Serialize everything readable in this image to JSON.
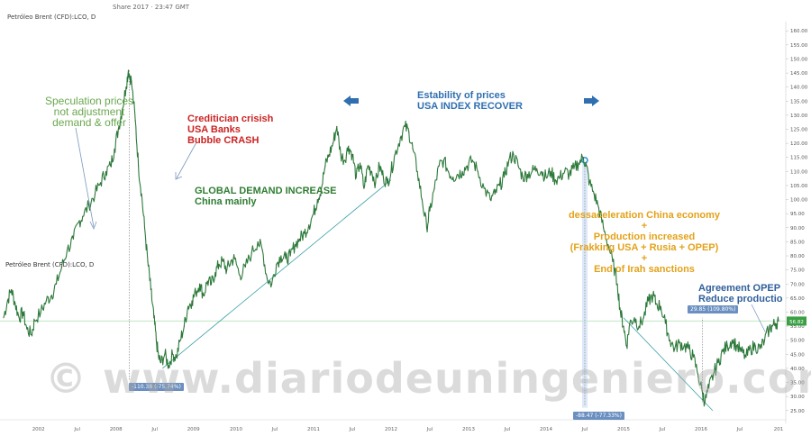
{
  "header": {
    "top_line": "Share 2017 · 23:47 GMT",
    "symbol": "Petróleo Brent (CFD):LCO, D",
    "side_label": "Petróleo Brent (CFD):LCO, D"
  },
  "watermark": "© www.diariodeuningeniero.com",
  "chart_data": {
    "type": "line",
    "title": "Petróleo Brent (CFD):LCO, D",
    "xlabel": "",
    "ylabel": "",
    "x_ticks": [
      "2002",
      "Jul",
      "2008",
      "Jul",
      "2009",
      "2010",
      "Jul",
      "2011",
      "Jul",
      "2012",
      "Jul",
      "2013",
      "Jul",
      "2014",
      "Jul",
      "2015",
      "Jul",
      "2016",
      "Jul",
      "201"
    ],
    "y_ticks": [
      "160.00",
      "155.00",
      "150.00",
      "145.00",
      "140.00",
      "135.00",
      "130.00",
      "125.00",
      "120.00",
      "115.00",
      "110.00",
      "105.00",
      "100.00",
      "95.00",
      "90.00",
      "85.00",
      "80.00",
      "75.00",
      "70.00",
      "65.00",
      "60.00",
      "55.00",
      "50.00",
      "45.00",
      "40.00",
      "35.00",
      "30.00",
      "25.00"
    ],
    "ylim": [
      23,
      162
    ],
    "last_price": "56.82",
    "grid": false,
    "series": [
      {
        "values": [
          [
            2007.0,
            58
          ],
          [
            2007.05,
            64
          ],
          [
            2007.1,
            68
          ],
          [
            2007.15,
            63
          ],
          [
            2007.2,
            58
          ],
          [
            2007.25,
            60
          ],
          [
            2007.3,
            54
          ],
          [
            2007.36,
            52
          ],
          [
            2007.4,
            57
          ],
          [
            2007.48,
            60
          ],
          [
            2007.55,
            64
          ],
          [
            2007.62,
            66
          ],
          [
            2007.68,
            70
          ],
          [
            2007.75,
            76
          ],
          [
            2007.82,
            82
          ],
          [
            2007.9,
            86
          ],
          [
            2007.97,
            92
          ],
          [
            2008.02,
            94
          ],
          [
            2008.1,
            98
          ],
          [
            2008.18,
            102
          ],
          [
            2008.25,
            106
          ],
          [
            2008.32,
            110
          ],
          [
            2008.38,
            112
          ],
          [
            2008.43,
            118
          ],
          [
            2008.48,
            125
          ],
          [
            2008.53,
            132
          ],
          [
            2008.58,
            140
          ],
          [
            2008.61,
            146
          ],
          [
            2008.65,
            142
          ],
          [
            2008.7,
            128
          ],
          [
            2008.74,
            112
          ],
          [
            2008.78,
            102
          ],
          [
            2008.82,
            90
          ],
          [
            2008.86,
            78
          ],
          [
            2008.9,
            68
          ],
          [
            2008.94,
            58
          ],
          [
            2008.97,
            50
          ],
          [
            2009.0,
            44
          ],
          [
            2009.03,
            42
          ],
          [
            2009.08,
            45
          ],
          [
            2009.13,
            41
          ],
          [
            2009.18,
            45
          ],
          [
            2009.23,
            44
          ],
          [
            2009.28,
            50
          ],
          [
            2009.33,
            55
          ],
          [
            2009.38,
            62
          ],
          [
            2009.43,
            64
          ],
          [
            2009.48,
            67
          ],
          [
            2009.53,
            70
          ],
          [
            2009.58,
            66
          ],
          [
            2009.63,
            71
          ],
          [
            2009.68,
            70
          ],
          [
            2009.73,
            74
          ],
          [
            2009.78,
            77
          ],
          [
            2009.83,
            78
          ],
          [
            2009.88,
            75
          ],
          [
            2009.93,
            78
          ],
          [
            2009.98,
            79
          ],
          [
            2010.05,
            73
          ],
          [
            2010.12,
            76
          ],
          [
            2010.2,
            81
          ],
          [
            2010.28,
            85
          ],
          [
            2010.34,
            82
          ],
          [
            2010.4,
            72
          ],
          [
            2010.46,
            70
          ],
          [
            2010.52,
            77
          ],
          [
            2010.58,
            80
          ],
          [
            2010.64,
            79
          ],
          [
            2010.7,
            80
          ],
          [
            2010.76,
            84
          ],
          [
            2010.82,
            86
          ],
          [
            2010.88,
            88
          ],
          [
            2010.94,
            91
          ],
          [
            2011.0,
            95
          ],
          [
            2011.05,
            100
          ],
          [
            2011.1,
            104
          ],
          [
            2011.15,
            112
          ],
          [
            2011.2,
            116
          ],
          [
            2011.25,
            120
          ],
          [
            2011.3,
            126
          ],
          [
            2011.35,
            116
          ],
          [
            2011.4,
            114
          ],
          [
            2011.45,
            119
          ],
          [
            2011.5,
            116
          ],
          [
            2011.55,
            108
          ],
          [
            2011.6,
            113
          ],
          [
            2011.65,
            104
          ],
          [
            2011.7,
            112
          ],
          [
            2011.75,
            110
          ],
          [
            2011.8,
            106
          ],
          [
            2011.85,
            112
          ],
          [
            2011.9,
            108
          ],
          [
            2011.95,
            106
          ],
          [
            2012.0,
            110
          ],
          [
            2012.05,
            116
          ],
          [
            2012.12,
            122
          ],
          [
            2012.18,
            126
          ],
          [
            2012.23,
            124
          ],
          [
            2012.28,
            118
          ],
          [
            2012.34,
            110
          ],
          [
            2012.4,
            100
          ],
          [
            2012.46,
            90
          ],
          [
            2012.5,
            96
          ],
          [
            2012.56,
            104
          ],
          [
            2012.62,
            112
          ],
          [
            2012.68,
            114
          ],
          [
            2012.74,
            110
          ],
          [
            2012.8,
            108
          ],
          [
            2012.86,
            109
          ],
          [
            2012.92,
            110
          ],
          [
            2012.98,
            112
          ],
          [
            2013.05,
            114
          ],
          [
            2013.12,
            110
          ],
          [
            2013.2,
            104
          ],
          [
            2013.28,
            100
          ],
          [
            2013.34,
            102
          ],
          [
            2013.4,
            105
          ],
          [
            2013.46,
            108
          ],
          [
            2013.52,
            114
          ],
          [
            2013.58,
            116
          ],
          [
            2013.64,
            112
          ],
          [
            2013.7,
            108
          ],
          [
            2013.76,
            109
          ],
          [
            2013.82,
            110
          ],
          [
            2013.88,
            111
          ],
          [
            2013.94,
            110
          ],
          [
            2014.0,
            108
          ],
          [
            2014.06,
            110
          ],
          [
            2014.12,
            107
          ],
          [
            2014.18,
            108
          ],
          [
            2014.24,
            110
          ],
          [
            2014.3,
            109
          ],
          [
            2014.36,
            111
          ],
          [
            2014.42,
            113
          ],
          [
            2014.48,
            115
          ],
          [
            2014.52,
            112
          ],
          [
            2014.56,
            106
          ],
          [
            2014.62,
            102
          ],
          [
            2014.68,
            97
          ],
          [
            2014.74,
            90
          ],
          [
            2014.8,
            84
          ],
          [
            2014.86,
            78
          ],
          [
            2014.92,
            70
          ],
          [
            2014.96,
            60
          ],
          [
            2015.0,
            55
          ],
          [
            2015.04,
            48
          ],
          [
            2015.08,
            56
          ],
          [
            2015.14,
            58
          ],
          [
            2015.2,
            55
          ],
          [
            2015.26,
            58
          ],
          [
            2015.32,
            64
          ],
          [
            2015.38,
            66
          ],
          [
            2015.42,
            63
          ],
          [
            2015.48,
            62
          ],
          [
            2015.54,
            56
          ],
          [
            2015.6,
            50
          ],
          [
            2015.66,
            47
          ],
          [
            2015.72,
            49
          ],
          [
            2015.78,
            48
          ],
          [
            2015.84,
            47
          ],
          [
            2015.9,
            44
          ],
          [
            2015.96,
            38
          ],
          [
            2016.02,
            31
          ],
          [
            2016.05,
            28
          ],
          [
            2016.1,
            33
          ],
          [
            2016.16,
            38
          ],
          [
            2016.22,
            42
          ],
          [
            2016.28,
            46
          ],
          [
            2016.34,
            48
          ],
          [
            2016.4,
            50
          ],
          [
            2016.46,
            48
          ],
          [
            2016.52,
            46
          ],
          [
            2016.58,
            44
          ],
          [
            2016.64,
            47
          ],
          [
            2016.7,
            48
          ],
          [
            2016.76,
            47
          ],
          [
            2016.82,
            50
          ],
          [
            2016.88,
            54
          ],
          [
            2016.92,
            55
          ],
          [
            2016.96,
            56
          ],
          [
            2017.0,
            56.82
          ]
        ]
      }
    ],
    "annotations": {
      "speculation": [
        "Speculation prices",
        "not adjustment",
        "demand & offer"
      ],
      "crisis": [
        "Creditician crisish",
        "USA Banks",
        "Bubble CRASH"
      ],
      "demand": [
        "GLOBAL DEMAND INCREASE",
        "China mainly"
      ],
      "stability": [
        "Estability of prices",
        "USA INDEX RECOVER"
      ],
      "decline": [
        "dessaceleration China economy",
        "+",
        "Production increased",
        "(Frakking USA + Rusia + OPEP)",
        "+",
        "End of Irah sanctions"
      ],
      "agreement": [
        "Agreement OPEP",
        "Reduce productio"
      ]
    },
    "measure_labels": {
      "drop_2008": "-110.38 (-75.74%)",
      "drop_2014": "-88.47 (-77.33%)",
      "rise_2016": "29.85 (109.80%)"
    }
  },
  "colors": {
    "price_line": "#2a7a3a",
    "speculation": "#6aa84f",
    "crisis": "#cc2222",
    "demand": "#2e7d32",
    "stability": "#2f6fb0",
    "decline": "#e3a21a",
    "agreement": "#2f5f9a",
    "trendline": "#3aa0a8",
    "price_tag": "#3aa043"
  }
}
